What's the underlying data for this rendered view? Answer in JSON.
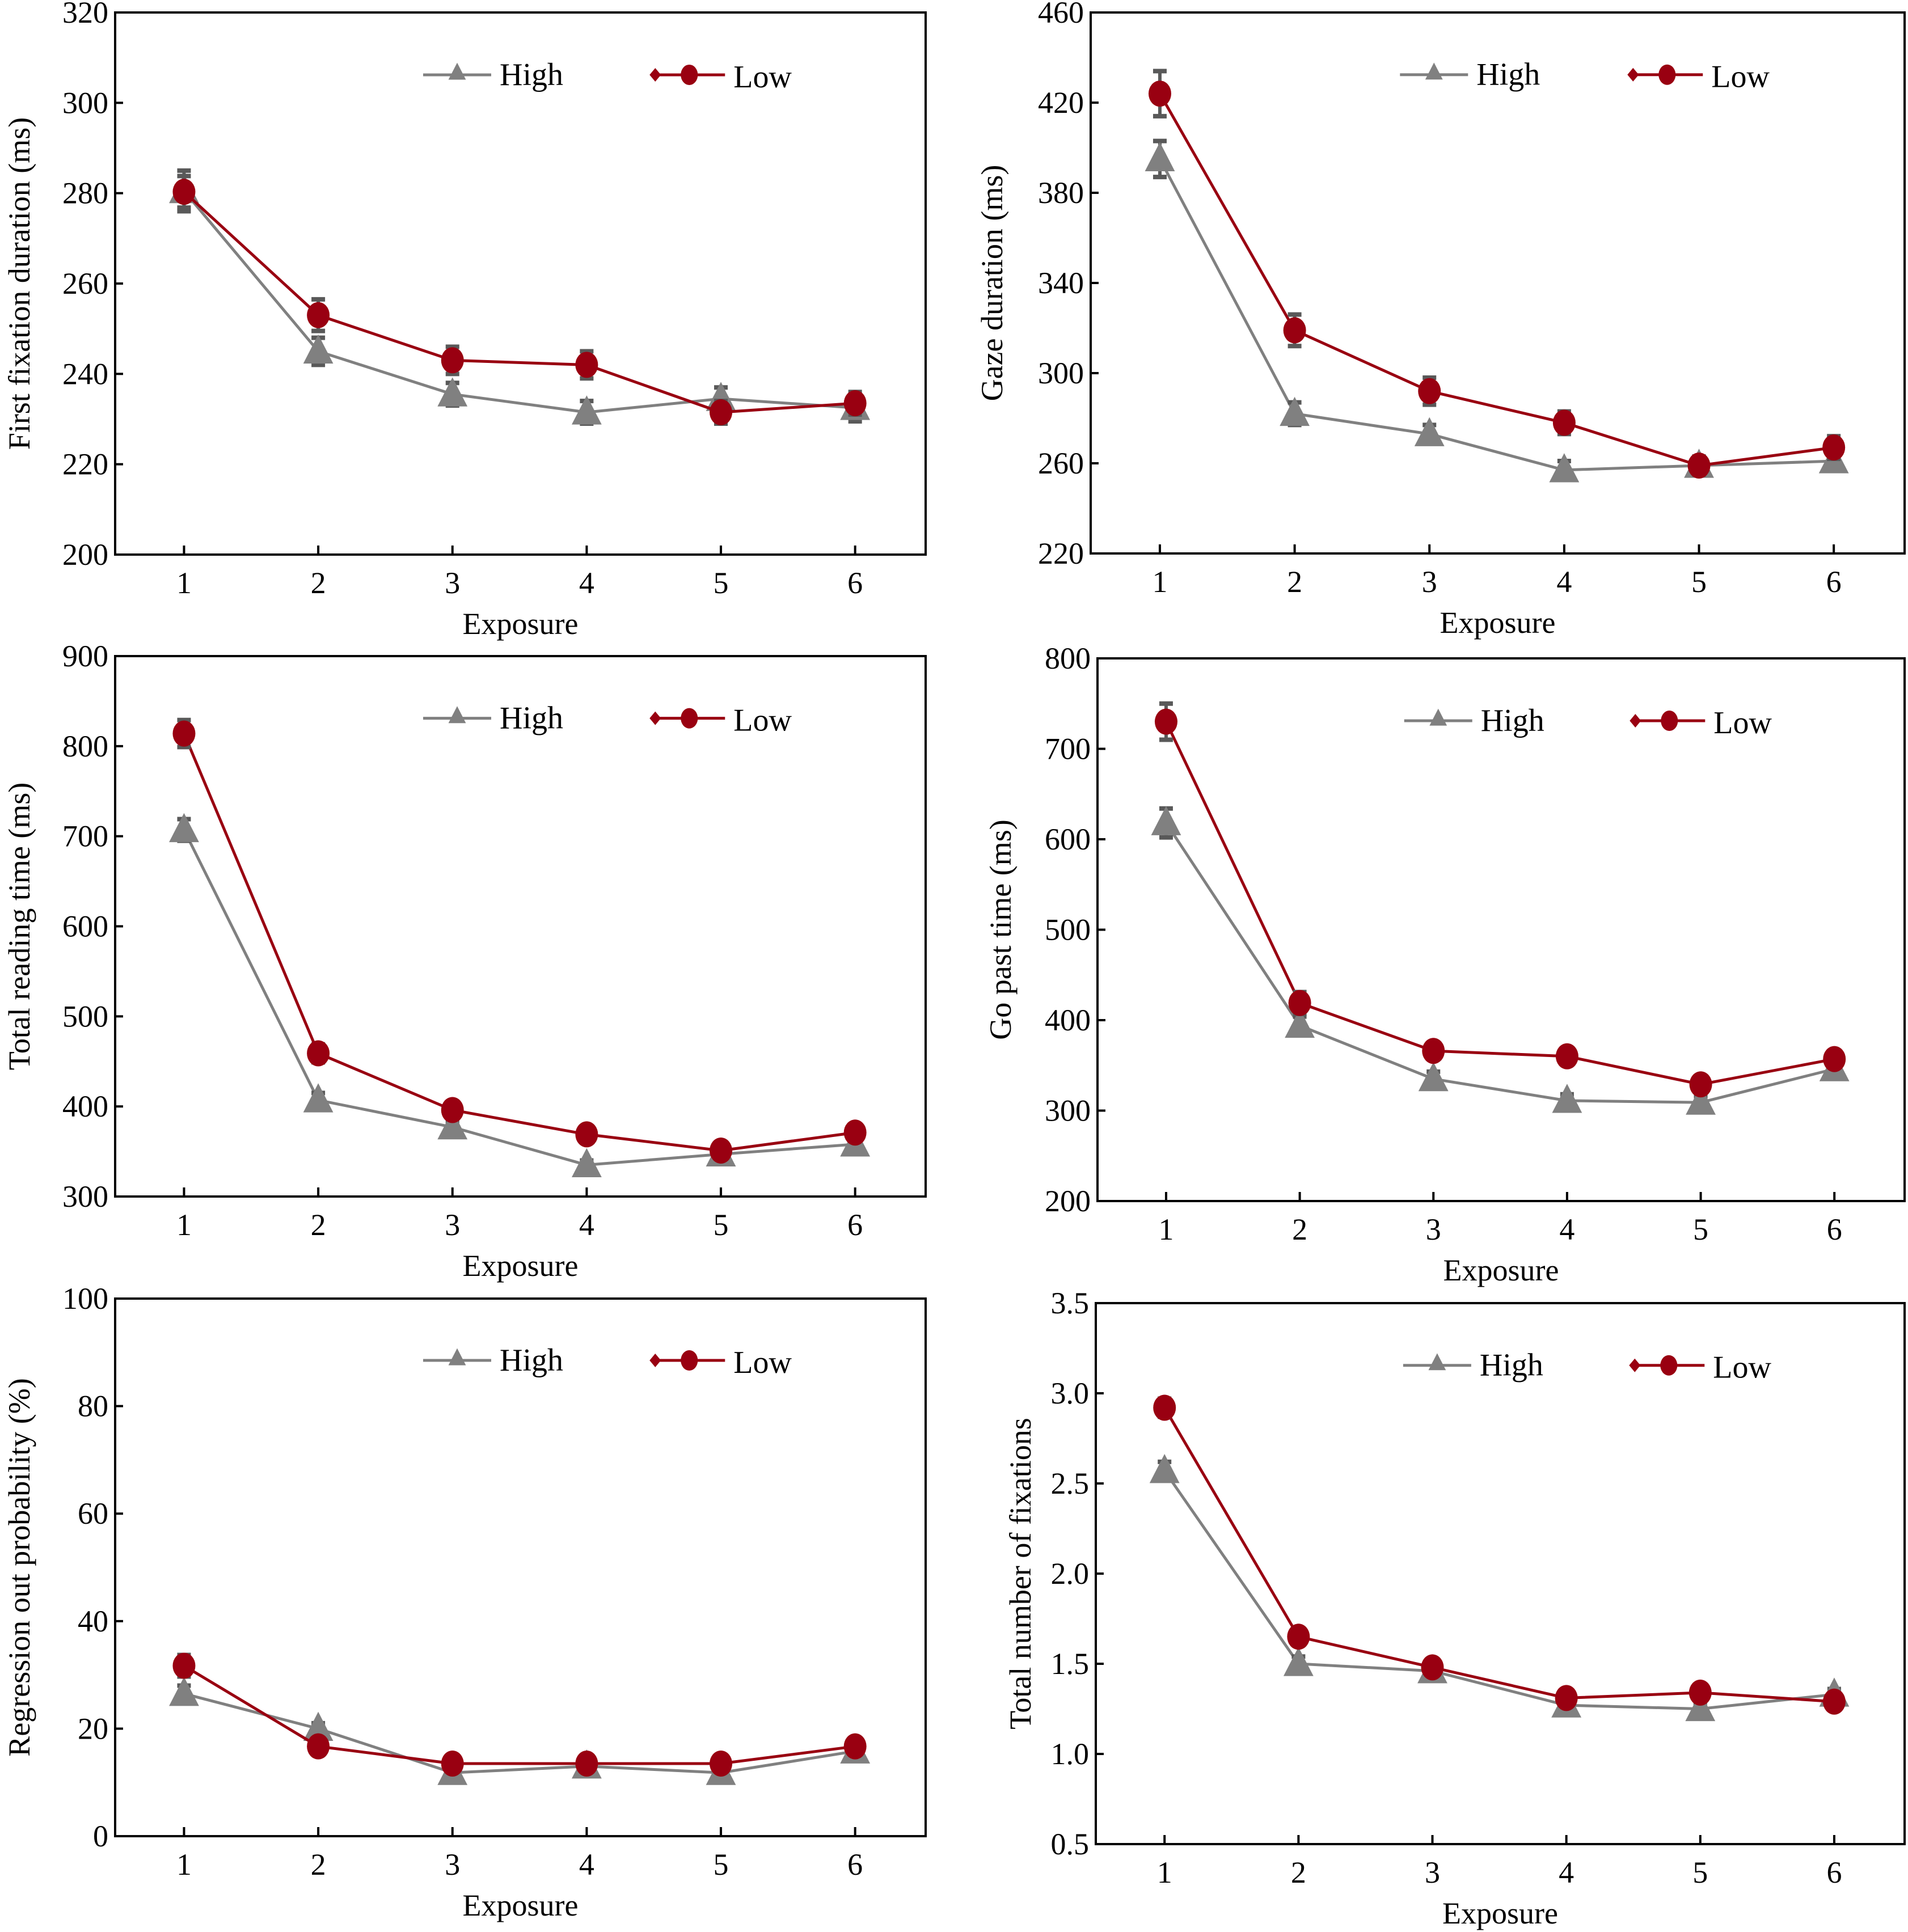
{
  "figure": {
    "legend": {
      "high_label": "High",
      "low_label": "Low"
    },
    "colors": {
      "high": "#808080",
      "high_errorbar": "#595959",
      "low": "#990011",
      "axis": "#000000"
    }
  },
  "chart_data": [
    {
      "id": "first-fixation",
      "type": "line",
      "title": "",
      "xlabel": "Exposure",
      "ylabel": "First fixation duration (ms)",
      "x": [
        1,
        2,
        3,
        4,
        5,
        6
      ],
      "x_tick_labels": [
        "1",
        "2",
        "3",
        "4",
        "5",
        "6"
      ],
      "ylim": [
        200,
        320
      ],
      "y_ticks": [
        200,
        220,
        240,
        260,
        280,
        300,
        320
      ],
      "y_tick_labels": [
        "200",
        "220",
        "240",
        "260",
        "280",
        "300",
        "320"
      ],
      "legend": "top-right",
      "grid": false,
      "series": [
        {
          "name": "High",
          "marker": "triangle",
          "values": [
            280.5,
            245,
            235.5,
            231.5,
            234.5,
            232.5
          ],
          "errors": [
            4.5,
            3,
            2.5,
            2.5,
            2.5,
            3
          ]
        },
        {
          "name": "Low",
          "marker": "circle",
          "values": [
            280.3,
            253,
            243,
            242,
            231.5,
            233.5
          ],
          "errors": [
            3.5,
            3.5,
            3,
            3,
            2.5,
            2.5
          ]
        }
      ]
    },
    {
      "id": "gaze-duration",
      "type": "line",
      "title": "",
      "xlabel": "Exposure",
      "ylabel": "Gaze duration (ms)",
      "x": [
        1,
        2,
        3,
        4,
        5,
        6
      ],
      "x_tick_labels": [
        "1",
        "2",
        "3",
        "4",
        "5",
        "6"
      ],
      "ylim": [
        220,
        460
      ],
      "y_ticks": [
        220,
        260,
        300,
        340,
        380,
        420,
        460
      ],
      "y_tick_labels": [
        "220",
        "260",
        "300",
        "340",
        "380",
        "420",
        "460"
      ],
      "legend": "top-right",
      "grid": false,
      "series": [
        {
          "name": "High",
          "marker": "triangle",
          "values": [
            395,
            282,
            273,
            257,
            259,
            261
          ],
          "errors": [
            8,
            5,
            4,
            4,
            4,
            4
          ]
        },
        {
          "name": "Low",
          "marker": "circle",
          "values": [
            424,
            319,
            292,
            278,
            259,
            267
          ],
          "errors": [
            10,
            7,
            6,
            5,
            4,
            5
          ]
        }
      ]
    },
    {
      "id": "total-reading-time",
      "type": "line",
      "title": "",
      "xlabel": "Exposure",
      "ylabel": "Total reading time (ms)",
      "x": [
        1,
        2,
        3,
        4,
        5,
        6
      ],
      "x_tick_labels": [
        "1",
        "2",
        "3",
        "4",
        "5",
        "6"
      ],
      "ylim": [
        300,
        900
      ],
      "y_ticks": [
        300,
        400,
        500,
        600,
        700,
        800,
        900
      ],
      "y_tick_labels": [
        "300",
        "400",
        "500",
        "600",
        "700",
        "800",
        "900"
      ],
      "legend": "top-right",
      "grid": false,
      "series": [
        {
          "name": "High",
          "marker": "triangle",
          "values": [
            707,
            407,
            377,
            335,
            347,
            358
          ],
          "errors": [
            12,
            8,
            6,
            5,
            5,
            6
          ]
        },
        {
          "name": "Low",
          "marker": "circle",
          "values": [
            814,
            459,
            396,
            369,
            351,
            371
          ],
          "errors": [
            15,
            10,
            8,
            7,
            6,
            8
          ]
        }
      ]
    },
    {
      "id": "go-past-time",
      "type": "line",
      "title": "",
      "xlabel": "Exposure",
      "ylabel": "Go past time (ms)",
      "x": [
        1,
        2,
        3,
        4,
        5,
        6
      ],
      "x_tick_labels": [
        "1",
        "2",
        "3",
        "4",
        "5",
        "6"
      ],
      "ylim": [
        200,
        800
      ],
      "y_ticks": [
        200,
        300,
        400,
        500,
        600,
        700,
        800
      ],
      "y_tick_labels": [
        "200",
        "300",
        "400",
        "500",
        "600",
        "700",
        "800"
      ],
      "legend": "top-right",
      "grid": false,
      "series": [
        {
          "name": "High",
          "marker": "triangle",
          "values": [
            618,
            394,
            335,
            311,
            309,
            346
          ],
          "errors": [
            16,
            10,
            8,
            7,
            7,
            9
          ]
        },
        {
          "name": "Low",
          "marker": "circle",
          "values": [
            730,
            419,
            366,
            360,
            329,
            357
          ],
          "errors": [
            20,
            12,
            9,
            9,
            8,
            9
          ]
        }
      ]
    },
    {
      "id": "regression-out-probability",
      "type": "line",
      "title": "",
      "xlabel": "Exposure",
      "ylabel": "Regression out probability (%)",
      "x": [
        1,
        2,
        3,
        4,
        5,
        6
      ],
      "x_tick_labels": [
        "1",
        "2",
        "3",
        "4",
        "5",
        "6"
      ],
      "ylim": [
        0,
        100
      ],
      "y_ticks": [
        0,
        20,
        40,
        60,
        80,
        100
      ],
      "y_tick_labels": [
        "0",
        "20",
        "40",
        "60",
        "80",
        "100"
      ],
      "legend": "top-right",
      "grid": false,
      "series": [
        {
          "name": "High",
          "marker": "triangle",
          "values": [
            26.5,
            20,
            11.8,
            13,
            11.8,
            15.8
          ],
          "errors": [
            1.5,
            1,
            1,
            1,
            1,
            1
          ]
        },
        {
          "name": "Low",
          "marker": "circle",
          "values": [
            31.7,
            16.7,
            13.5,
            13.5,
            13.5,
            16.7
          ],
          "errors": [
            2,
            1,
            1,
            1,
            1,
            1
          ]
        }
      ]
    },
    {
      "id": "total-number-of-fixations",
      "type": "line",
      "title": "",
      "xlabel": "Exposure",
      "ylabel": "Total number of fixations",
      "x": [
        1,
        2,
        3,
        4,
        5,
        6
      ],
      "x_tick_labels": [
        "1",
        "2",
        "3",
        "4",
        "5",
        "6"
      ],
      "ylim": [
        0.5,
        3.5
      ],
      "y_ticks": [
        0.5,
        1.0,
        1.5,
        2.0,
        2.5,
        3.0,
        3.5
      ],
      "y_tick_labels": [
        "0.5",
        "1.0",
        "1.5",
        "2.0",
        "2.5",
        "3.0",
        "3.5"
      ],
      "legend": "top-right",
      "grid": false,
      "series": [
        {
          "name": "High",
          "marker": "triangle",
          "values": [
            2.57,
            1.5,
            1.46,
            1.27,
            1.25,
            1.33
          ],
          "errors": [
            0.05,
            0.04,
            0.03,
            0.03,
            0.03,
            0.03
          ]
        },
        {
          "name": "Low",
          "marker": "circle",
          "values": [
            2.92,
            1.65,
            1.48,
            1.31,
            1.34,
            1.29
          ],
          "errors": [
            0.05,
            0.04,
            0.03,
            0.03,
            0.03,
            0.03
          ]
        }
      ]
    }
  ]
}
